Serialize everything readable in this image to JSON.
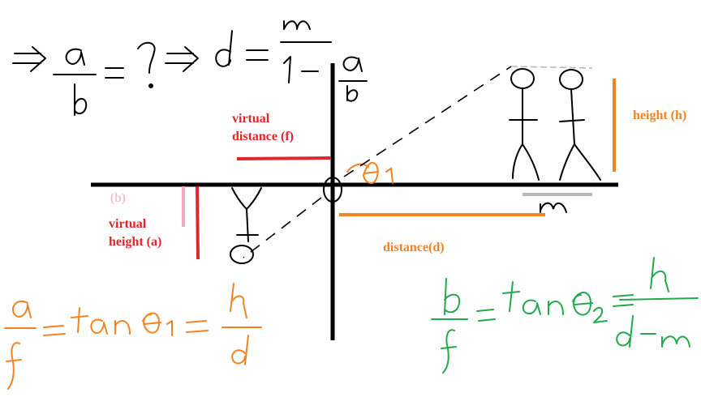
{
  "colors": {
    "ink": "#000000",
    "red": "#e0262b",
    "orange": "#f58220",
    "pink": "#f7a8c0",
    "green": "#22a94b",
    "gray": "#b8b8b8"
  },
  "labels": {
    "virtual_distance_line1": "virtual",
    "virtual_distance_line2": "distance (f)",
    "virtual_height_line1": "virtual",
    "virtual_height_line2": "height (a)",
    "b_label": "(b)",
    "distance": "distance(d)",
    "height": "height (h)"
  },
  "handwriting": {
    "top_formula": "⇒ a/b = ? ⇒ d = m / (1 − a/b)",
    "theta1": "θ₁",
    "m": "m",
    "left_formula": "a/f = tan θ₁ = h/d",
    "right_formula": "b/f = tan θ₂ = h/(d−m)"
  }
}
